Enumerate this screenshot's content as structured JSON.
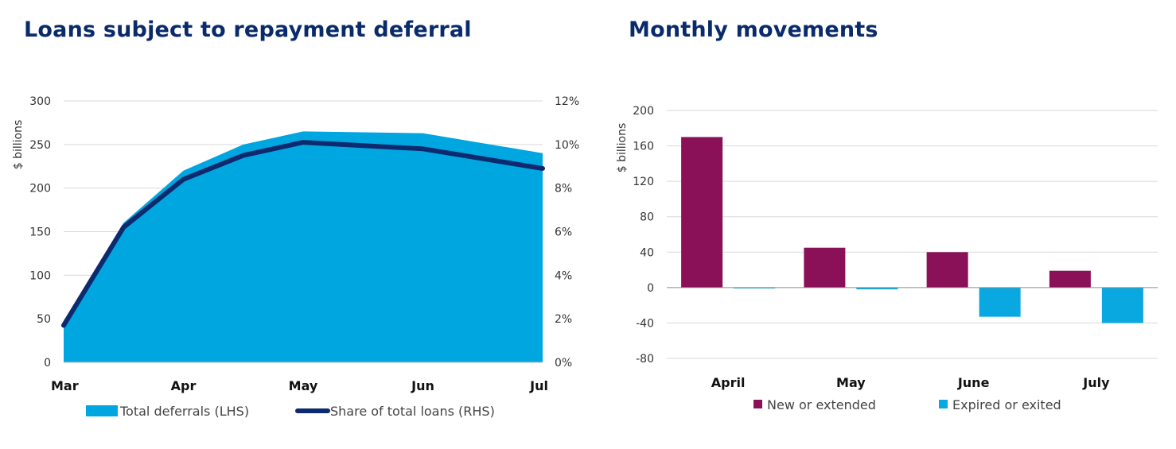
{
  "colors": {
    "title": "#0a2b6b",
    "area": "#00a6e0",
    "line": "#0d2a6e",
    "new": "#8a1058",
    "expired": "#0aa8e0",
    "grid": "#d9d9d9"
  },
  "chart_data": [
    {
      "type": "area",
      "title": "Loans subject to repayment deferral",
      "ylabel": "$ billions",
      "ylim": [
        0,
        300
      ],
      "yticks": [
        "0",
        "50",
        "100",
        "150",
        "200",
        "250",
        "300"
      ],
      "y2lim": [
        0,
        12
      ],
      "y2ticks": [
        "0%",
        "2%",
        "4%",
        "6%",
        "8%",
        "10%",
        "12%"
      ],
      "x_labels": [
        "Mar",
        "Apr",
        "May",
        "Jun",
        "Jul"
      ],
      "grid": true,
      "legend_position": "bottom",
      "series": [
        {
          "name": "Total deferrals (LHS)",
          "axis": "left",
          "type": "area",
          "x": [
            0,
            0.5,
            1,
            1.5,
            2,
            3,
            4
          ],
          "values": [
            45,
            160,
            220,
            250,
            265,
            263,
            240
          ]
        },
        {
          "name": "Share of total loans (RHS)",
          "axis": "right",
          "type": "line",
          "x": [
            0,
            0.5,
            1,
            1.5,
            2,
            3,
            4
          ],
          "values": [
            1.7,
            6.2,
            8.4,
            9.5,
            10.1,
            9.8,
            8.9
          ]
        }
      ]
    },
    {
      "type": "bar",
      "title": "Monthly movements",
      "ylabel": "$ billions",
      "ylim": [
        -80,
        200
      ],
      "yticks": [
        "-80",
        "-40",
        "0",
        "40",
        "80",
        "120",
        "160",
        "200"
      ],
      "categories": [
        "April",
        "May",
        "June",
        "July"
      ],
      "grid": true,
      "legend_position": "bottom",
      "series": [
        {
          "name": "New or extended",
          "values": [
            170,
            45,
            40,
            19
          ]
        },
        {
          "name": "Expired or exited",
          "values": [
            -1,
            -2,
            -33,
            -40
          ]
        }
      ]
    }
  ]
}
